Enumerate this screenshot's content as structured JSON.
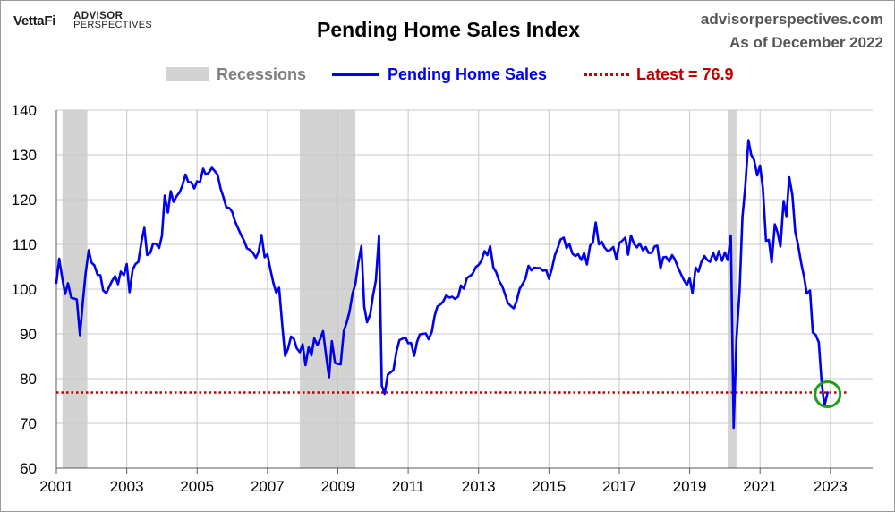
{
  "header": {
    "logo_vettafi": "VettaFi",
    "logo_advisor": "ADVISOR",
    "logo_perspectives": "PERSPECTIVES",
    "site": "advisorperspectives.com",
    "as_of": "As of December 2022"
  },
  "chart_data": {
    "type": "line",
    "title": "Pending Home Sales Index",
    "xlabel": "",
    "ylabel": "",
    "ylim": [
      60,
      140
    ],
    "xlim": [
      2001.0,
      2024.2
    ],
    "yticks": [
      60,
      70,
      80,
      90,
      100,
      110,
      120,
      130,
      140
    ],
    "xticks": [
      "2001",
      "2003",
      "2005",
      "2007",
      "2009",
      "2011",
      "2013",
      "2015",
      "2017",
      "2019",
      "2021",
      "2023"
    ],
    "grid": true,
    "legend_position": "top",
    "legend": {
      "recessions_label": "Recessions",
      "series_label": "Pending Home Sales",
      "latest_label": "Latest = 76.9"
    },
    "colors": {
      "series": "#0000ee",
      "recession": "#d3d3d3",
      "latest": "#c00000",
      "highlight_circle": "#1e9e1e",
      "grid": "#c8c8c8"
    },
    "recessions": [
      {
        "start": 2001.17,
        "end": 2001.88
      },
      {
        "start": 2007.92,
        "end": 2009.5
      },
      {
        "start": 2020.08,
        "end": 2020.33
      }
    ],
    "latest_value": 76.9,
    "highlight": {
      "x": 2022.92,
      "y": 76.5
    },
    "series": [
      {
        "name": "Pending Home Sales",
        "x": [
          2001.0,
          2001.08,
          2001.17,
          2001.25,
          2001.33,
          2001.42,
          2001.5,
          2001.58,
          2001.67,
          2001.75,
          2001.83,
          2001.92,
          2002.0,
          2002.08,
          2002.17,
          2002.25,
          2002.33,
          2002.42,
          2002.5,
          2002.58,
          2002.67,
          2002.75,
          2002.83,
          2002.92,
          2003.0,
          2003.08,
          2003.17,
          2003.25,
          2003.33,
          2003.42,
          2003.5,
          2003.58,
          2003.67,
          2003.75,
          2003.83,
          2003.92,
          2004.0,
          2004.08,
          2004.17,
          2004.25,
          2004.33,
          2004.42,
          2004.5,
          2004.58,
          2004.67,
          2004.75,
          2004.83,
          2004.92,
          2005.0,
          2005.08,
          2005.17,
          2005.25,
          2005.33,
          2005.42,
          2005.5,
          2005.58,
          2005.67,
          2005.75,
          2005.83,
          2005.92,
          2006.0,
          2006.08,
          2006.17,
          2006.25,
          2006.33,
          2006.42,
          2006.5,
          2006.58,
          2006.67,
          2006.75,
          2006.83,
          2006.92,
          2007.0,
          2007.08,
          2007.17,
          2007.25,
          2007.33,
          2007.42,
          2007.5,
          2007.58,
          2007.67,
          2007.75,
          2007.83,
          2007.92,
          2008.0,
          2008.08,
          2008.17,
          2008.25,
          2008.33,
          2008.42,
          2008.5,
          2008.58,
          2008.67,
          2008.75,
          2008.83,
          2008.92,
          2009.0,
          2009.08,
          2009.17,
          2009.25,
          2009.33,
          2009.42,
          2009.5,
          2009.58,
          2009.67,
          2009.75,
          2009.83,
          2009.92,
          2010.0,
          2010.08,
          2010.17,
          2010.25,
          2010.33,
          2010.42,
          2010.5,
          2010.58,
          2010.67,
          2010.75,
          2010.83,
          2010.92,
          2011.0,
          2011.08,
          2011.17,
          2011.25,
          2011.33,
          2011.42,
          2011.5,
          2011.58,
          2011.67,
          2011.75,
          2011.83,
          2011.92,
          2012.0,
          2012.08,
          2012.17,
          2012.25,
          2012.33,
          2012.42,
          2012.5,
          2012.58,
          2012.67,
          2012.75,
          2012.83,
          2012.92,
          2013.0,
          2013.08,
          2013.17,
          2013.25,
          2013.33,
          2013.42,
          2013.5,
          2013.58,
          2013.67,
          2013.75,
          2013.83,
          2013.92,
          2014.0,
          2014.08,
          2014.17,
          2014.25,
          2014.33,
          2014.42,
          2014.5,
          2014.58,
          2014.67,
          2014.75,
          2014.83,
          2014.92,
          2015.0,
          2015.08,
          2015.17,
          2015.25,
          2015.33,
          2015.42,
          2015.5,
          2015.58,
          2015.67,
          2015.75,
          2015.83,
          2015.92,
          2016.0,
          2016.08,
          2016.17,
          2016.25,
          2016.33,
          2016.42,
          2016.5,
          2016.58,
          2016.67,
          2016.75,
          2016.83,
          2016.92,
          2017.0,
          2017.08,
          2017.17,
          2017.25,
          2017.33,
          2017.42,
          2017.5,
          2017.58,
          2017.67,
          2017.75,
          2017.83,
          2017.92,
          2018.0,
          2018.08,
          2018.17,
          2018.25,
          2018.33,
          2018.42,
          2018.5,
          2018.58,
          2018.67,
          2018.75,
          2018.83,
          2018.92,
          2019.0,
          2019.08,
          2019.17,
          2019.25,
          2019.33,
          2019.42,
          2019.5,
          2019.58,
          2019.67,
          2019.75,
          2019.83,
          2019.92,
          2020.0,
          2020.08,
          2020.17,
          2020.25,
          2020.33,
          2020.42,
          2020.5,
          2020.58,
          2020.67,
          2020.75,
          2020.83,
          2020.92,
          2021.0,
          2021.08,
          2021.17,
          2021.25,
          2021.33,
          2021.42,
          2021.5,
          2021.58,
          2021.67,
          2021.75,
          2021.83,
          2021.92,
          2022.0,
          2022.08,
          2022.17,
          2022.25,
          2022.33,
          2022.42,
          2022.5,
          2022.58,
          2022.67,
          2022.75,
          2022.83,
          2022.92
        ],
        "values": [
          101.4,
          106.8,
          102.3,
          98.9,
          101.3,
          98.1,
          97.9,
          97.7,
          89.7,
          97.0,
          103.5,
          108.7,
          105.9,
          105.3,
          103.2,
          103.1,
          99.7,
          99.1,
          100.5,
          101.8,
          102.9,
          101.1,
          103.9,
          103.1,
          105.6,
          99.3,
          104.4,
          105.6,
          106.1,
          110.7,
          113.7,
          107.6,
          108.1,
          110.2,
          110.1,
          109.2,
          111.9,
          120.9,
          117.1,
          121.9,
          119.5,
          120.8,
          121.6,
          123.1,
          125.6,
          123.9,
          123.9,
          122.5,
          124.1,
          123.8,
          126.9,
          125.6,
          126.0,
          127.1,
          126.4,
          125.6,
          122.4,
          120.5,
          118.3,
          118.1,
          117.2,
          115.1,
          113.5,
          112.1,
          110.9,
          109.1,
          108.8,
          108.2,
          107.0,
          108.4,
          112.1,
          107.1,
          107.8,
          104.5,
          101.3,
          99.2,
          100.3,
          92.0,
          85.1,
          86.6,
          89.4,
          88.9,
          86.8,
          85.9,
          87.7,
          83.0,
          87.0,
          85.2,
          89.0,
          87.5,
          88.9,
          90.6,
          84.9,
          80.3,
          88.4,
          83.5,
          83.3,
          83.2,
          90.7,
          92.5,
          94.9,
          99.1,
          101.2,
          105.8,
          109.6,
          96.1,
          92.6,
          94.4,
          98.6,
          101.9,
          112.0,
          78.4,
          76.6,
          80.9,
          81.4,
          81.9,
          86.2,
          88.6,
          88.9,
          89.2,
          87.9,
          88.0,
          85.1,
          88.2,
          89.9,
          90.0,
          90.1,
          88.8,
          90.4,
          94.0,
          96.1,
          96.6,
          97.3,
          98.6,
          98.1,
          98.3,
          97.8,
          98.3,
          100.8,
          100.1,
          102.5,
          102.9,
          103.4,
          104.9,
          105.4,
          106.3,
          108.5,
          107.6,
          109.6,
          104.8,
          103.8,
          101.9,
          100.7,
          98.9,
          96.9,
          96.2,
          95.7,
          97.3,
          100.1,
          101.1,
          102.3,
          105.2,
          104.2,
          104.8,
          104.7,
          104.7,
          104.1,
          104.3,
          102.3,
          104.4,
          107.6,
          109.2,
          111.1,
          111.5,
          109.2,
          110.1,
          107.9,
          107.4,
          107.8,
          106.5,
          108.1,
          105.5,
          109.7,
          110.4,
          114.9,
          110.0,
          110.6,
          109.3,
          108.5,
          108.8,
          109.4,
          106.7,
          110.3,
          110.8,
          111.5,
          107.7,
          112.0,
          110.1,
          109.3,
          110.2,
          108.7,
          109.4,
          108.1,
          108.1,
          109.5,
          109.7,
          104.6,
          107.1,
          107.2,
          106.1,
          107.6,
          106.6,
          104.8,
          103.4,
          102.1,
          100.9,
          102.4,
          99.1,
          104.8,
          103.9,
          106.0,
          107.4,
          106.5,
          106.1,
          108.1,
          106.4,
          108.5,
          106.3,
          108.2,
          106.5,
          112.0,
          69.0,
          88.8,
          99.8,
          116.1,
          122.9,
          133.3,
          130.0,
          128.9,
          125.4,
          127.6,
          122.6,
          110.8,
          111.0,
          106.0,
          114.5,
          112.6,
          109.5,
          119.7,
          116.3,
          125.0,
          121.0,
          112.8,
          109.9,
          105.8,
          102.8,
          99.0,
          99.7,
          90.3,
          89.8,
          88.1,
          79.2,
          73.9,
          76.9
        ]
      }
    ]
  }
}
